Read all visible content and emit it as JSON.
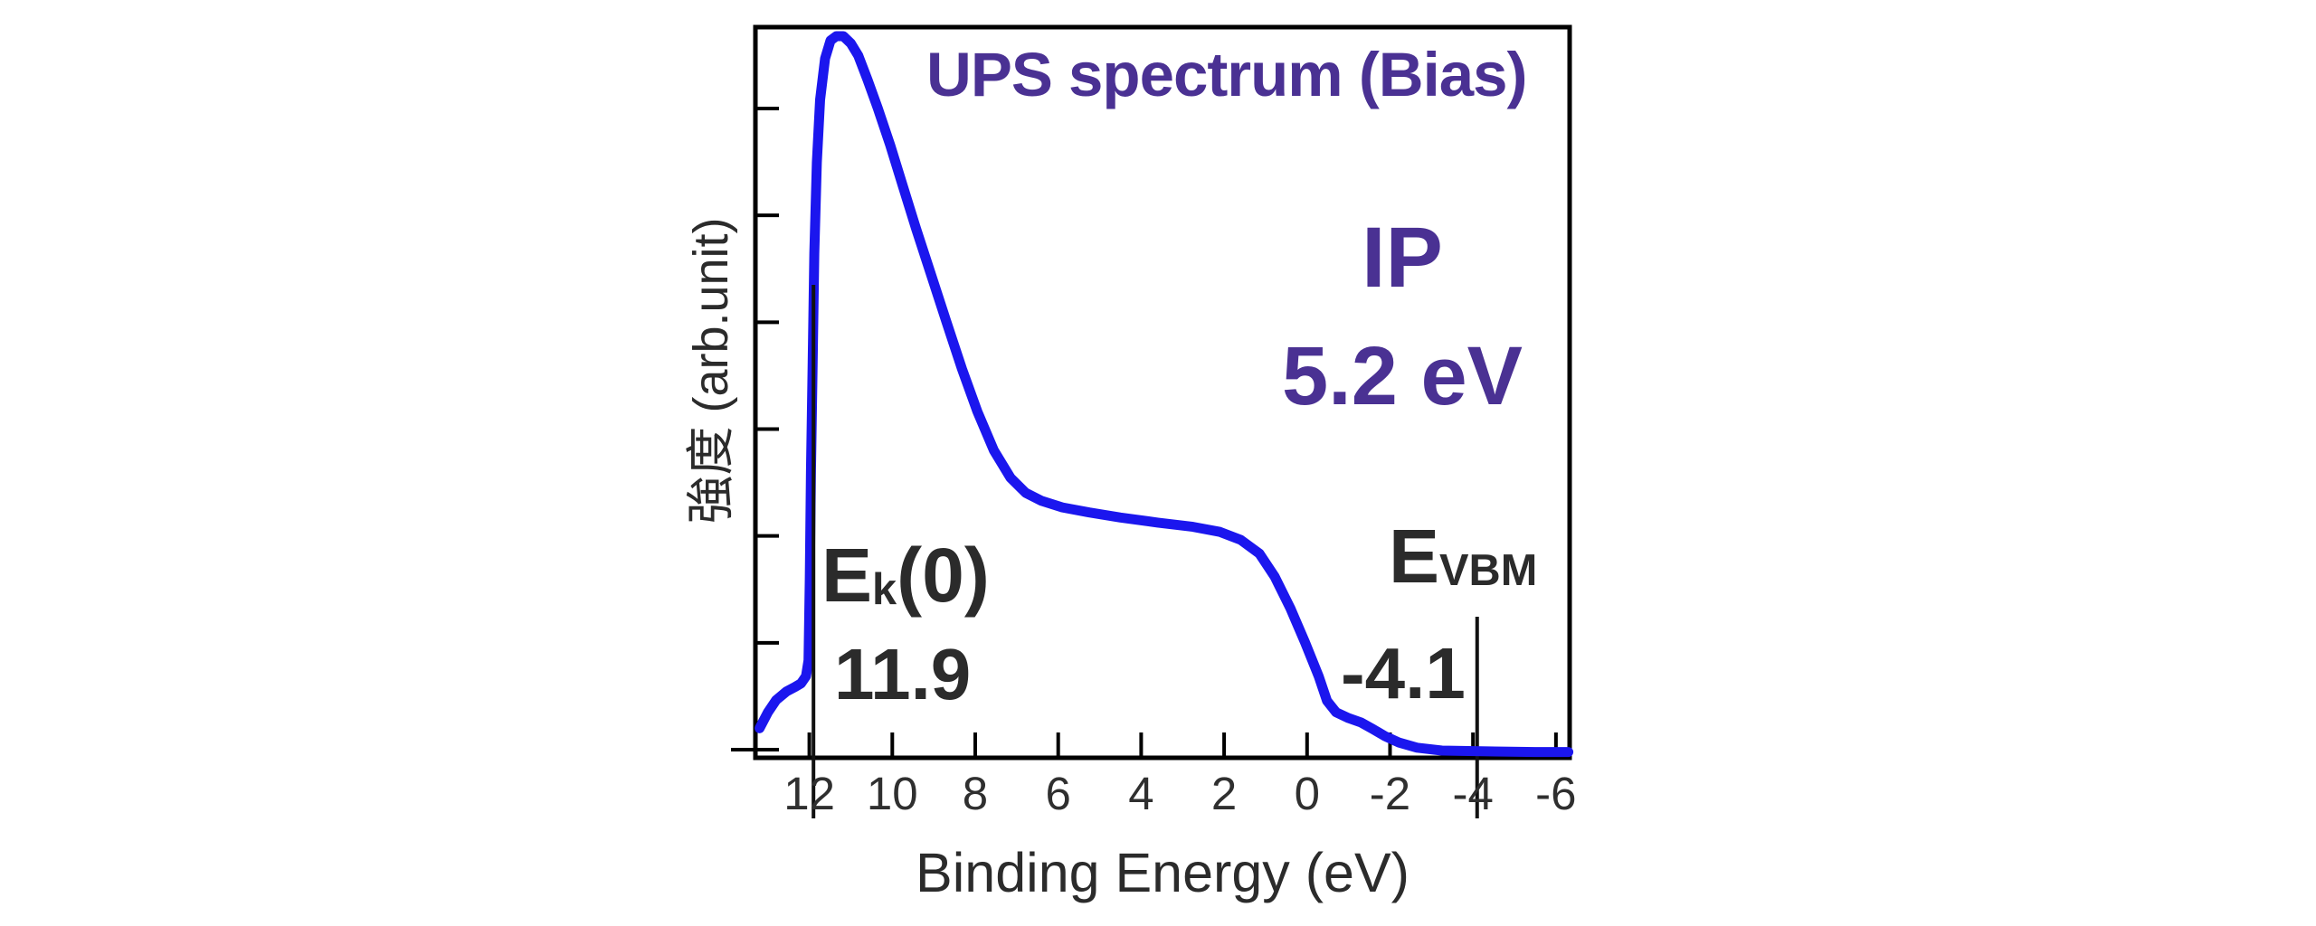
{
  "figure": {
    "title": "UPS spectrum (Bias)",
    "annotations": {
      "ip_label": "IP",
      "ip_value": "5.2 eV",
      "ek": {
        "pre": "E",
        "sub": "k",
        "post": "(0)",
        "value": "11.9"
      },
      "evbm": {
        "pre": "E",
        "sub": "VBM",
        "post": "",
        "value": "-4.1"
      }
    },
    "colors": {
      "curve_blue": "#1b16ee",
      "accent_purple": "#4a3193",
      "ink": "#2b2b2b",
      "axis_black": "#000000"
    }
  },
  "chart_data": {
    "type": "line",
    "title": "UPS spectrum (Bias)",
    "xlabel": "Binding Energy (eV)",
    "ylabel": "強度 (arb.unit)",
    "x_axis": {
      "ticks": [
        12,
        10,
        8,
        6,
        4,
        2,
        0,
        -2,
        -4,
        -6
      ],
      "reversed": true,
      "range": [
        13.3,
        -6.33
      ],
      "unit": "eV"
    },
    "y_axis": {
      "tick_count": 7,
      "tick_labels_shown": false,
      "unit": "arb.unit"
    },
    "series": [
      {
        "name": "UPS spectrum (Bias)",
        "color": "#1b16ee",
        "x_binding_energy_eV": [
          13.2,
          13.0,
          12.8,
          12.55,
          12.35,
          12.2,
          12.08,
          12.02,
          11.99,
          11.96,
          11.92,
          11.88,
          11.82,
          11.74,
          11.62,
          11.49,
          11.35,
          11.18,
          11.0,
          10.82,
          10.6,
          10.35,
          10.05,
          9.75,
          9.43,
          9.08,
          8.7,
          8.32,
          7.95,
          7.55,
          7.15,
          6.78,
          6.4,
          5.9,
          5.25,
          4.5,
          3.6,
          2.75,
          2.1,
          1.6,
          1.15,
          0.78,
          0.4,
          0.05,
          -0.28,
          -0.48,
          -0.7,
          -1.0,
          -1.3,
          -1.58,
          -1.88,
          -2.22,
          -2.65,
          -3.25,
          -4.2,
          -5.5,
          -6.3
        ],
        "y_intensity_norm": [
          0.041,
          0.063,
          0.08,
          0.092,
          0.098,
          0.103,
          0.113,
          0.135,
          0.248,
          0.398,
          0.549,
          0.699,
          0.825,
          0.912,
          0.969,
          0.994,
          1.0,
          1.0,
          0.99,
          0.973,
          0.94,
          0.9,
          0.849,
          0.793,
          0.734,
          0.672,
          0.605,
          0.539,
          0.48,
          0.426,
          0.388,
          0.367,
          0.356,
          0.347,
          0.34,
          0.333,
          0.326,
          0.32,
          0.313,
          0.302,
          0.283,
          0.251,
          0.207,
          0.16,
          0.113,
          0.079,
          0.063,
          0.055,
          0.049,
          0.04,
          0.03,
          0.021,
          0.014,
          0.01,
          0.009,
          0.008,
          0.008
        ]
      }
    ],
    "markers": [
      {
        "name": "Ek(0)",
        "label": "Ek(0)",
        "x_eV": 11.9
      },
      {
        "name": "EVBM",
        "label": "EVBM",
        "x_eV": -4.1
      }
    ],
    "derived": {
      "ip_label": "IP",
      "ip_value_eV": 5.2
    }
  }
}
